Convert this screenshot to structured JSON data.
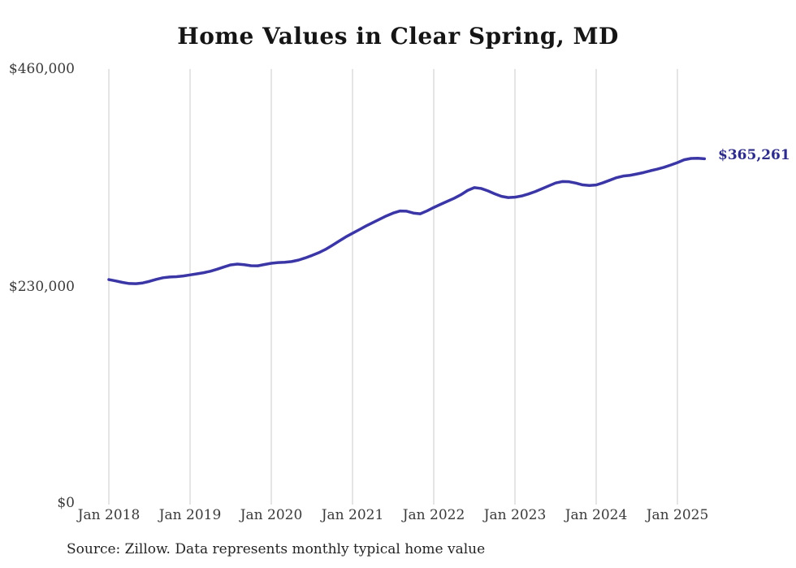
{
  "chart_data": {
    "type": "line",
    "title": "Home Values in Clear Spring, MD",
    "xlabel": "",
    "ylabel": "",
    "ylim": [
      0,
      460000
    ],
    "grid": "vertical-only",
    "grid_color": "#cbcbcb",
    "line_color": "#3b36a6",
    "end_label": "$365,261",
    "end_label_color": "#2d2c87",
    "end_value": 365261,
    "x_start": "Jan 2018",
    "x_end": "May 2025",
    "x_tick_labels": [
      "Jan 2018",
      "Jan 2019",
      "Jan 2020",
      "Jan 2021",
      "Jan 2022",
      "Jan 2023",
      "Jan 2024",
      "Jan 2025"
    ],
    "y_tick_labels": [
      "$460,000",
      "$230,000",
      "$0"
    ],
    "y_tick_values": [
      460000,
      230000,
      0
    ],
    "series": [
      {
        "name": "Monthly typical home value",
        "values": [
          237700,
          236300,
          234700,
          233500,
          233300,
          234100,
          235800,
          237900,
          239600,
          240400,
          240700,
          241500,
          242600,
          243700,
          244900,
          246500,
          248600,
          251000,
          253200,
          254000,
          253400,
          252300,
          252200,
          253600,
          254900,
          255600,
          256000,
          256700,
          258200,
          260500,
          263100,
          266000,
          269500,
          273800,
          278300,
          282700,
          286600,
          290400,
          294300,
          297900,
          301400,
          304900,
          307900,
          310100,
          309900,
          307900,
          307100,
          310200,
          313800,
          317100,
          320300,
          323500,
          327200,
          331800,
          334800,
          333900,
          331400,
          328300,
          325600,
          324300,
          324700,
          326000,
          328100,
          330600,
          333600,
          336700,
          339700,
          341200,
          341000,
          339600,
          337700,
          337100,
          337600,
          339900,
          342600,
          345300,
          347000,
          347800,
          349200,
          350700,
          352600,
          354300,
          356200,
          358600,
          361200,
          364200,
          365600,
          365800,
          365261
        ]
      }
    ]
  },
  "footer": {
    "source": "Source: Zillow. Data represents monthly typical home value"
  }
}
